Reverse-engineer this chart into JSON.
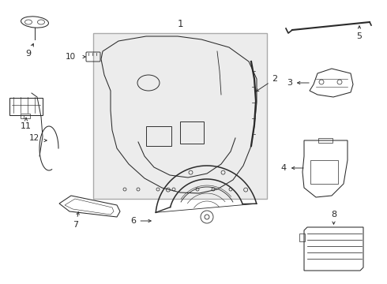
{
  "bg_color": "#ffffff",
  "line_color": "#2a2a2a",
  "box_fill": "#eeeeee",
  "box_edge": "#999999",
  "fig_width": 4.9,
  "fig_height": 3.6,
  "dpi": 100,
  "lw": 0.75
}
